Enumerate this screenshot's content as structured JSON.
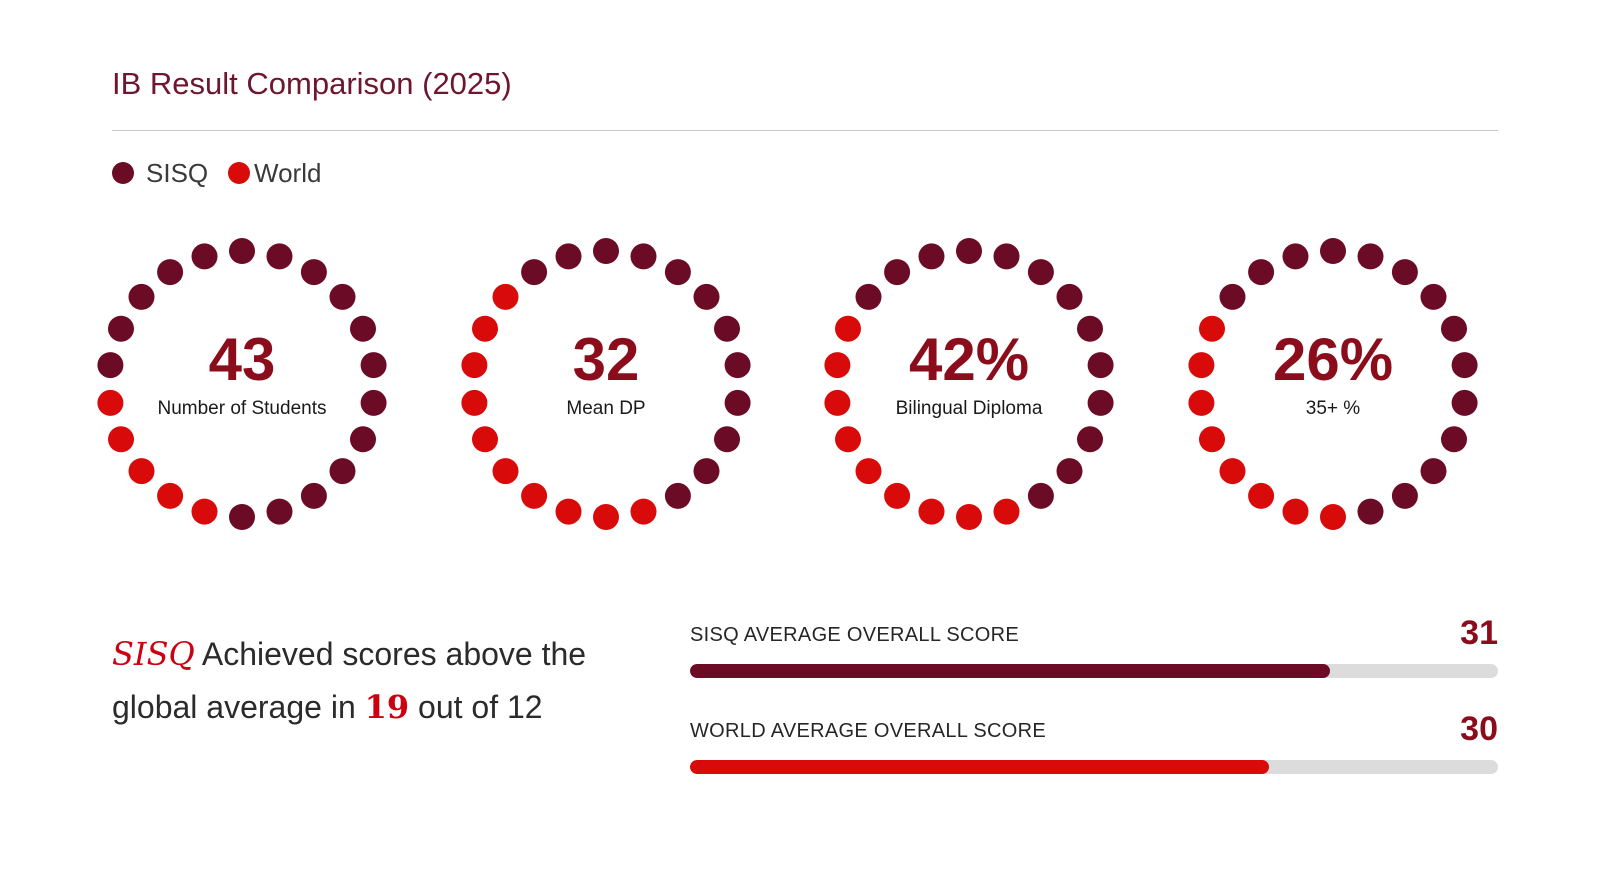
{
  "title": "IB Result Comparison (2025)",
  "colors": {
    "sisq": "#6b0b26",
    "world": "#d90a0a",
    "value": "#8b0d1c",
    "track": "#dcdcdc"
  },
  "legend": [
    {
      "label": "SISQ",
      "color": "#6b0b26"
    },
    {
      "label": "World",
      "color": "#d90a0a"
    }
  ],
  "chart_data": [
    {
      "type": "radial-dots",
      "dots_per_ring": 22,
      "items": [
        {
          "value": "43",
          "label": "Number of Students",
          "sisq_dots": 17,
          "world_dots": 5
        },
        {
          "value": "32",
          "label": "Mean DP",
          "sisq_dots": 12,
          "world_dots": 10
        },
        {
          "value": "42%",
          "label": "Bilingual Diploma",
          "sisq_dots": 13,
          "world_dots": 9
        },
        {
          "value": "26%",
          "label": "35+ %",
          "sisq_dots": 14,
          "world_dots": 8
        }
      ]
    },
    {
      "type": "bar",
      "categories": [
        "SISQ AVERAGE OVERALL SCORE",
        "WORLD AVERAGE OVERALL SCORE"
      ],
      "values": [
        31,
        30
      ],
      "fill_fractions": [
        0.792,
        0.716
      ]
    }
  ],
  "summary": {
    "school": "SISQ",
    "text1": " Achieved scores above the global average in ",
    "count": "19",
    "text2": " out of 12"
  }
}
